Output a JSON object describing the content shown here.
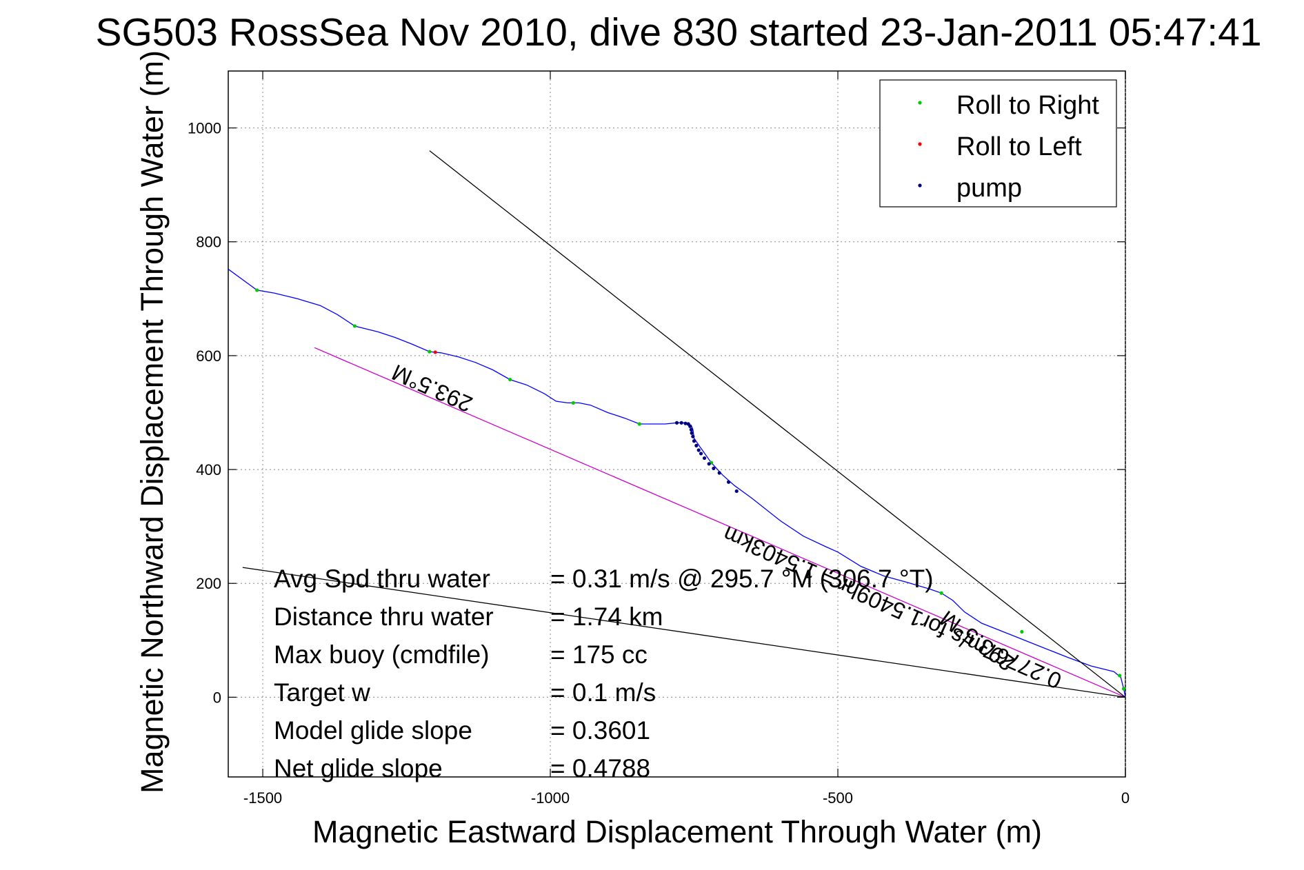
{
  "chart_data": {
    "type": "scatter",
    "title": "SG503 RossSea Nov 2010, dive 830 started 23-Jan-2011 05:47:41",
    "xlabel": "Magnetic Eastward Displacement Through Water (m)",
    "ylabel": "Magnetic Northward Displacement Through Water (m)",
    "xlim": [
      -1560,
      0
    ],
    "ylim": [
      -140,
      1100
    ],
    "xticks": [
      -1500,
      -1000,
      -500,
      0
    ],
    "yticks": [
      0,
      200,
      400,
      600,
      800,
      1000
    ],
    "grid": true,
    "legend": {
      "placement": "top-right",
      "entries": [
        {
          "label": "Roll to Right",
          "color": "#00cc00"
        },
        {
          "label": "Roll to Left",
          "color": "#ff0000"
        },
        {
          "label": "pump",
          "color": "#000080"
        }
      ]
    },
    "series": [
      {
        "type": "line",
        "color": "#0000ff",
        "x": [
          -1560,
          -1510,
          -1480,
          -1440,
          -1400,
          -1370,
          -1340,
          -1300,
          -1270,
          -1240,
          -1210,
          -1190,
          -1160,
          -1130,
          -1100,
          -1070,
          -1040,
          -1010,
          -990,
          -970,
          -950,
          -930,
          -900,
          -870,
          -845,
          -830,
          -800,
          -780,
          -765,
          -760,
          -755,
          -752,
          -750,
          -740,
          -720,
          -700,
          -680,
          -650,
          -600,
          -560,
          -520,
          -500,
          -460,
          -420,
          -380,
          -340,
          -320,
          -300,
          -280,
          -250,
          -200,
          -150,
          -100,
          -60,
          -20,
          -8,
          -3,
          0
        ],
        "y": [
          752,
          715,
          710,
          700,
          688,
          672,
          652,
          642,
          632,
          620,
          607,
          605,
          598,
          588,
          575,
          558,
          548,
          533,
          520,
          517,
          517,
          513,
          500,
          490,
          480,
          480,
          480,
          482,
          482,
          480,
          478,
          470,
          455,
          440,
          412,
          390,
          372,
          350,
          310,
          283,
          264,
          255,
          230,
          213,
          202,
          190,
          183,
          170,
          150,
          130,
          110,
          90,
          70,
          55,
          45,
          35,
          15,
          0
        ]
      },
      {
        "type": "line",
        "color": "#cc00cc",
        "x": [
          -1410,
          0
        ],
        "y": [
          614,
          0
        ]
      },
      {
        "type": "line",
        "color": "#000000",
        "x": [
          -1210,
          0
        ],
        "y": [
          960,
          0
        ]
      },
      {
        "type": "line",
        "color": "#000000",
        "x": [
          -1535,
          0
        ],
        "y": [
          228,
          0
        ]
      },
      {
        "name": "Roll to Right",
        "type": "markers",
        "color": "#00cc00",
        "x": [
          -1510,
          -1340,
          -1210,
          -1070,
          -960,
          -845,
          -720,
          -320,
          -180,
          -10,
          -3
        ],
        "y": [
          715,
          652,
          607,
          558,
          517,
          480,
          412,
          183,
          115,
          38,
          15
        ]
      },
      {
        "name": "Roll to Left",
        "type": "markers",
        "color": "#ff0000",
        "x": [
          -1200
        ],
        "y": [
          606
        ]
      },
      {
        "name": "pump",
        "type": "markers",
        "color": "#000080",
        "x": [
          -780,
          -772,
          -765,
          -760,
          -757,
          -755,
          -754,
          -752,
          -750,
          -746,
          -742,
          -738,
          -732,
          -724,
          -716,
          -706,
          -690,
          -676
        ],
        "y": [
          482,
          482,
          481,
          480,
          476,
          470,
          464,
          458,
          450,
          442,
          434,
          428,
          420,
          410,
          402,
          394,
          378,
          362
        ]
      }
    ],
    "annotations": [
      {
        "text": "293.5°M",
        "x": -1200,
        "y": 555,
        "angle": 24
      },
      {
        "text": "0.27767m/s for1.5409hr = 1.5403km",
        "x": -400,
        "y": 170,
        "angle": 24
      },
      {
        "text": "293.5°M",
        "x": -250,
        "y": 110,
        "angle": 36
      }
    ],
    "stats": [
      {
        "label": "Avg Spd thru water",
        "value": "=  0.31 m/s @ 295.7 °M (306.7 °T)"
      },
      {
        "label": "Distance thru water",
        "value": "=  1.74 km"
      },
      {
        "label": "Max buoy (cmdfile)",
        "value": "= 175 cc"
      },
      {
        "label": "Target w",
        "value": "= 0.1 m/s"
      },
      {
        "label": "Model glide slope",
        "value": "= 0.3601"
      },
      {
        "label": "Net glide slope",
        "value": "= 0.4788"
      }
    ]
  }
}
